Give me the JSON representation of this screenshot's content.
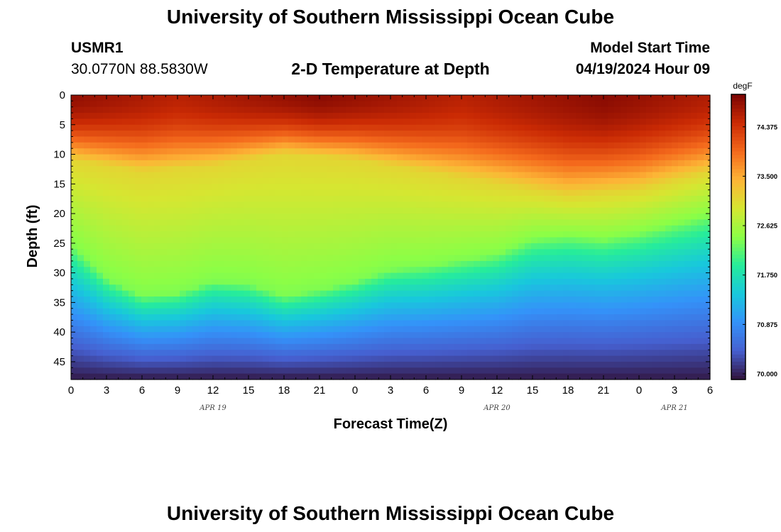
{
  "header": {
    "title": "University of Southern Mississippi Ocean Cube",
    "station_id": "USMR1",
    "coordinates": "30.0770N  88.5830W",
    "plot_title": "2-D Temperature at Depth",
    "model_start_label": "Model Start Time",
    "model_start_value": "04/19/2024 Hour 09"
  },
  "footer": {
    "title": "University of Southern Mississippi Ocean Cube"
  },
  "chart_data": {
    "type": "heatmap",
    "title": "2-D Temperature at Depth",
    "xlabel": "Forecast Time(Z)",
    "ylabel": "Depth (ft)",
    "x_tick_labels": [
      "0",
      "3",
      "6",
      "9",
      "12",
      "15",
      "18",
      "21",
      "0",
      "3",
      "6",
      "9",
      "12",
      "15",
      "18",
      "21",
      "0",
      "3",
      "6"
    ],
    "x_hours_range": [
      0,
      54
    ],
    "date_labels": [
      {
        "label": "APR 19",
        "hour": 12
      },
      {
        "label": "APR 20",
        "hour": 36
      },
      {
        "label": "APR 21",
        "hour": 51
      }
    ],
    "y_ticks": [
      0,
      5,
      10,
      15,
      20,
      25,
      30,
      35,
      40,
      45
    ],
    "ylim": [
      0,
      48
    ],
    "y_inverted": true,
    "colorbar": {
      "units": "degF",
      "min": 69.9,
      "max": 74.95,
      "ticks": [
        "74.375",
        "73.500",
        "72.625",
        "71.750",
        "70.875",
        "70.000"
      ],
      "tick_values": [
        74.375,
        73.5,
        72.625,
        71.75,
        70.875,
        70.0
      ]
    },
    "surface_temp_degF": {
      "hours": [
        0,
        9,
        21,
        33,
        45,
        54
      ],
      "values": [
        74.8,
        74.55,
        74.85,
        74.55,
        74.85,
        74.6
      ]
    },
    "warm_layer_depth_ft": {
      "hours": [
        0,
        6,
        12,
        18,
        24,
        30,
        36,
        42,
        48,
        54
      ],
      "values": [
        11,
        13,
        12,
        10,
        11,
        13,
        15,
        17,
        16,
        13
      ]
    },
    "thermocline_depth_ft": {
      "hours": [
        0,
        3,
        6,
        9,
        12,
        15,
        18,
        21,
        24,
        27,
        30,
        33,
        36,
        39,
        42,
        45,
        48,
        51,
        54
      ],
      "values": [
        25.5,
        31,
        34,
        33.5,
        31.5,
        32,
        34,
        33,
        31.5,
        29.5,
        29,
        28,
        27,
        24.5,
        24,
        24.5,
        23.5,
        22,
        20.5
      ]
    },
    "bottom_temp_degF": 69.95
  }
}
